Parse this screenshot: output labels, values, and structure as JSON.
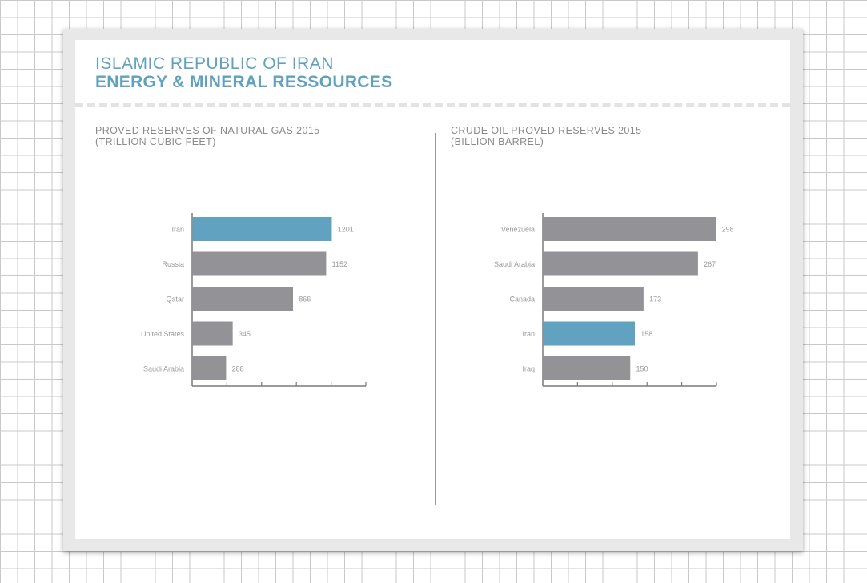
{
  "header": {
    "title_line1": "ISLAMIC REPUBLIC OF IRAN",
    "title_line2": "ENERGY & MINERAL RESSOURCES"
  },
  "colors": {
    "highlight": "#60a2bf",
    "bar": "#939296",
    "axis": "#7a7a7a",
    "label": "#9a9a9a"
  },
  "chart_data": [
    {
      "type": "bar",
      "orientation": "horizontal",
      "title_line1": "PROVED RESERVES OF NATURAL GAS 2015",
      "title_line2": "(TRILLION CUBIC FEET)",
      "categories": [
        "Iran",
        "Russia",
        "Qatar",
        "United States",
        "Saudi Arabia"
      ],
      "values": [
        1201,
        1152,
        866,
        345,
        288
      ],
      "data_labels": [
        "1201",
        "1152",
        "866",
        "345",
        "288"
      ],
      "highlight": "Iran",
      "xlim": [
        0,
        1500
      ],
      "grid": false,
      "legend": "none"
    },
    {
      "type": "bar",
      "orientation": "horizontal",
      "title_line1": "CRUDE OIL PROVED RESERVES 2015",
      "title_line2": "(BILLION BARREL)",
      "categories": [
        "Venezuela",
        "Saudi Arabia",
        "Canada",
        "Iran",
        "Iraq"
      ],
      "values": [
        298,
        267,
        173,
        158,
        150
      ],
      "data_labels": [
        "298",
        "267",
        "173",
        "158",
        "150"
      ],
      "highlight": "Iran",
      "xlim": [
        0,
        300
      ],
      "grid": false,
      "legend": "none"
    }
  ]
}
